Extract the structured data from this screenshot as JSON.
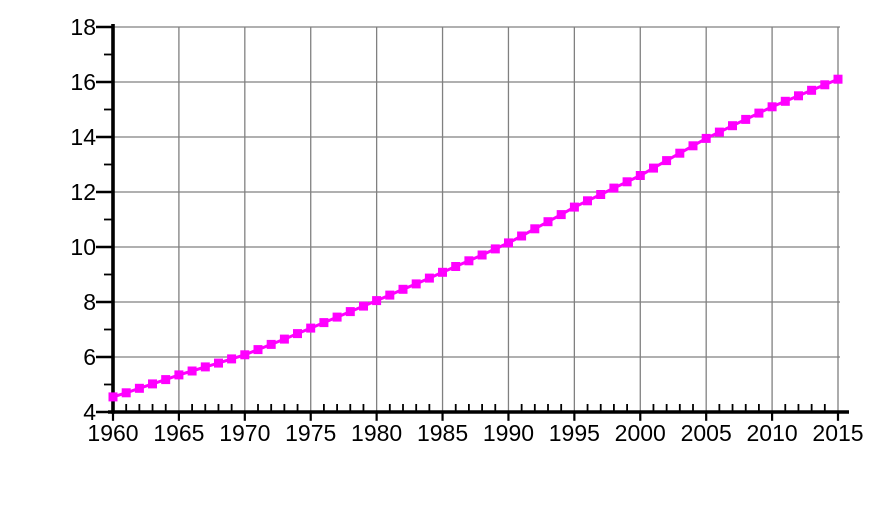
{
  "figure": {
    "background": "#ffffff"
  },
  "chart_data": {
    "type": "line",
    "title": "",
    "xlabel": "",
    "ylabel": "",
    "xlim": [
      1960,
      2015
    ],
    "ylim": [
      4,
      18
    ],
    "grid": true,
    "legend": "none",
    "x_major_ticks": [
      1960,
      1965,
      1970,
      1975,
      1980,
      1985,
      1990,
      1995,
      2000,
      2005,
      2010,
      2015
    ],
    "x_tick_labels": [
      "1960",
      "1965",
      "1970",
      "1975",
      "1980",
      "1985",
      "1990",
      "1995",
      "2000",
      "2005",
      "2010",
      "2015"
    ],
    "x_minor_step": 1,
    "y_major_ticks": [
      4,
      6,
      8,
      10,
      12,
      14,
      16,
      18
    ],
    "y_tick_labels": [
      "4",
      "6",
      "8",
      "10",
      "12",
      "14",
      "16",
      "18"
    ],
    "y_minor_step": 1,
    "colors": {
      "series": "#ff00ff",
      "grid": "#808080",
      "axis": "#000000",
      "tick_labels": "#000000",
      "background": "#ffffff"
    },
    "series": [
      {
        "name": "magenta-square-series",
        "marker": "square",
        "color": "#ff00ff",
        "x": [
          1960,
          1961,
          1962,
          1963,
          1964,
          1965,
          1966,
          1967,
          1968,
          1969,
          1970,
          1971,
          1972,
          1973,
          1974,
          1975,
          1976,
          1977,
          1978,
          1979,
          1980,
          1981,
          1982,
          1983,
          1984,
          1985,
          1986,
          1987,
          1988,
          1989,
          1990,
          1991,
          1992,
          1993,
          1994,
          1995,
          1996,
          1997,
          1998,
          1999,
          2000,
          2001,
          2002,
          2003,
          2004,
          2005,
          2006,
          2007,
          2008,
          2009,
          2010,
          2011,
          2012,
          2013,
          2014,
          2015
        ],
        "values": [
          4.55,
          4.7,
          4.86,
          5.02,
          5.18,
          5.35,
          5.49,
          5.64,
          5.78,
          5.93,
          6.08,
          6.27,
          6.46,
          6.65,
          6.85,
          7.05,
          7.25,
          7.45,
          7.65,
          7.85,
          8.05,
          8.25,
          8.46,
          8.66,
          8.87,
          9.08,
          9.29,
          9.5,
          9.71,
          9.93,
          10.15,
          10.4,
          10.66,
          10.92,
          11.18,
          11.45,
          11.68,
          11.91,
          12.14,
          12.37,
          12.6,
          12.87,
          13.14,
          13.41,
          13.68,
          13.95,
          14.18,
          14.41,
          14.64,
          14.87,
          15.1,
          15.3,
          15.5,
          15.7,
          15.9,
          16.1
        ]
      }
    ]
  }
}
